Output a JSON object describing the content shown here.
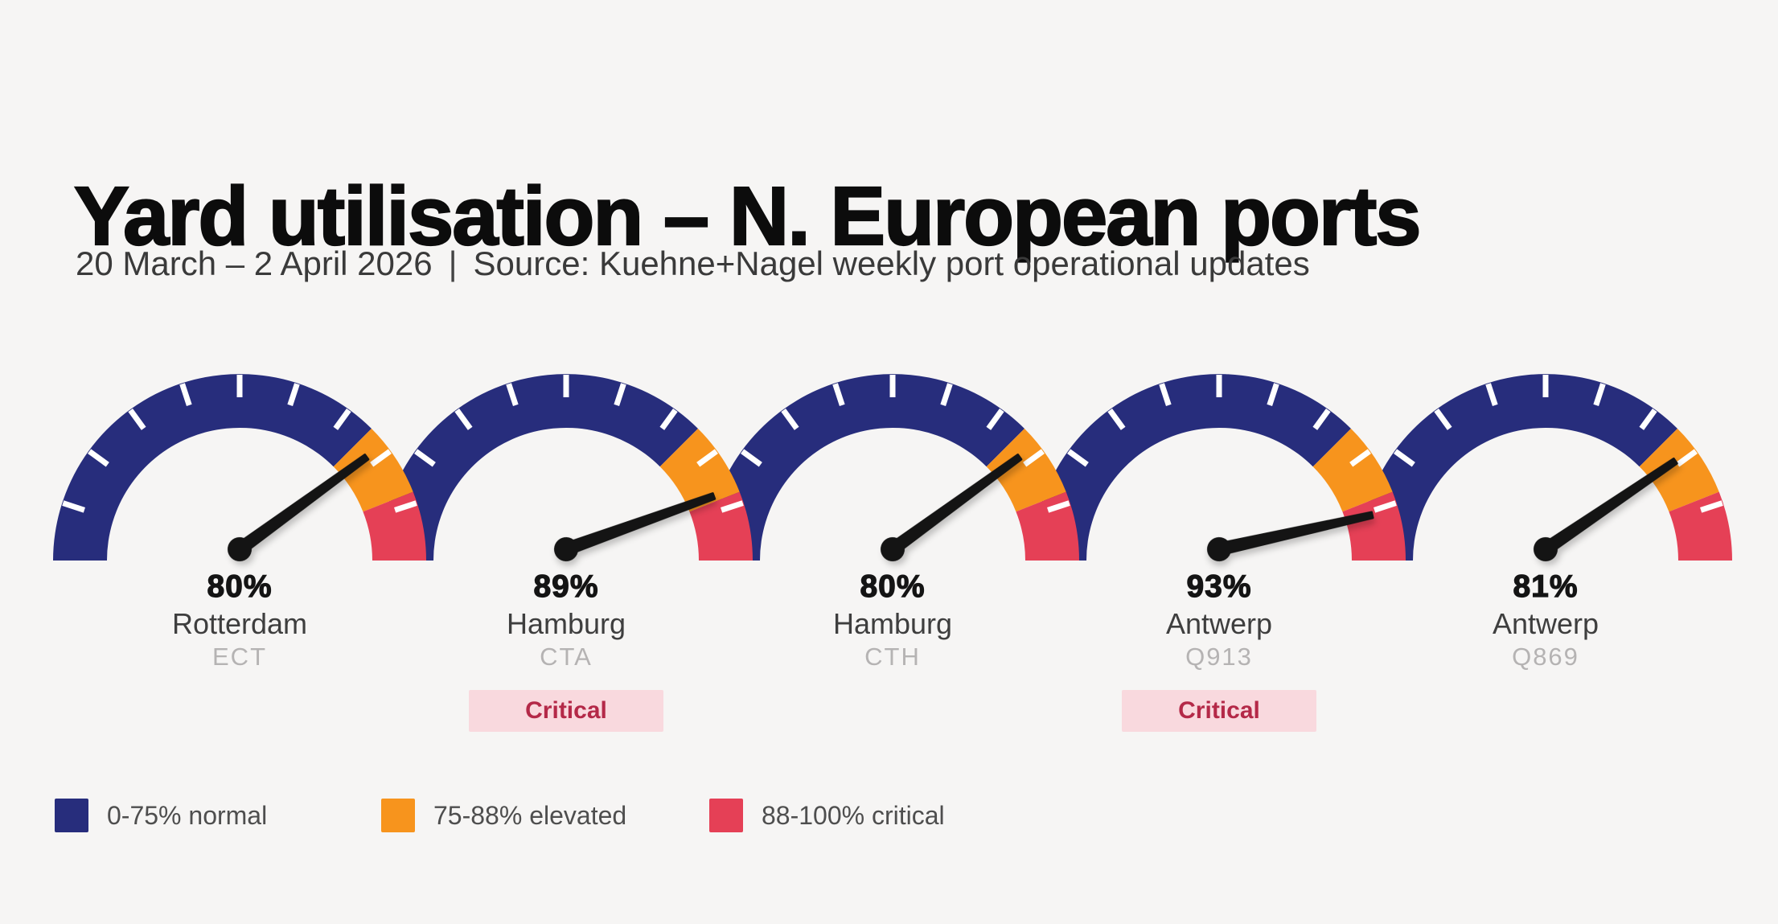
{
  "page": {
    "background": "#f6f5f4"
  },
  "header": {
    "title": "Yard utilisation – N. European ports",
    "period": "20 March – 2 April 2026",
    "separator": "|",
    "source": "Source: Kuehne+Nagel weekly port operational updates"
  },
  "chart_data": {
    "type": "gauge",
    "min": 0,
    "max": 100,
    "unit": "%",
    "tick_step": 10,
    "zones": [
      {
        "from": 0,
        "to": 75,
        "name": "normal",
        "color": "#272d7c",
        "legend_label": "0-75% normal"
      },
      {
        "from": 75,
        "to": 88,
        "name": "elevated",
        "color": "#f7941d",
        "legend_label": "75-88% elevated"
      },
      {
        "from": 88,
        "to": 100,
        "name": "critical",
        "color": "#e54056",
        "legend_label": "88-100% critical"
      }
    ],
    "gauges": [
      {
        "value": 80,
        "value_label": "80%",
        "city": "Rotterdam",
        "terminal": "ECT",
        "badge": null
      },
      {
        "value": 89,
        "value_label": "89%",
        "city": "Hamburg",
        "terminal": "CTA",
        "badge": "Critical"
      },
      {
        "value": 80,
        "value_label": "80%",
        "city": "Hamburg",
        "terminal": "CTH",
        "badge": null
      },
      {
        "value": 93,
        "value_label": "93%",
        "city": "Antwerp",
        "terminal": "Q913",
        "badge": "Critical"
      },
      {
        "value": 81,
        "value_label": "81%",
        "city": "Antwerp",
        "terminal": "Q869",
        "badge": null
      }
    ]
  },
  "style": {
    "needle_color": "#141414",
    "tick_color": "#ffffff",
    "badge_bg": "#f9d9de",
    "badge_text_color": "#b42948"
  }
}
